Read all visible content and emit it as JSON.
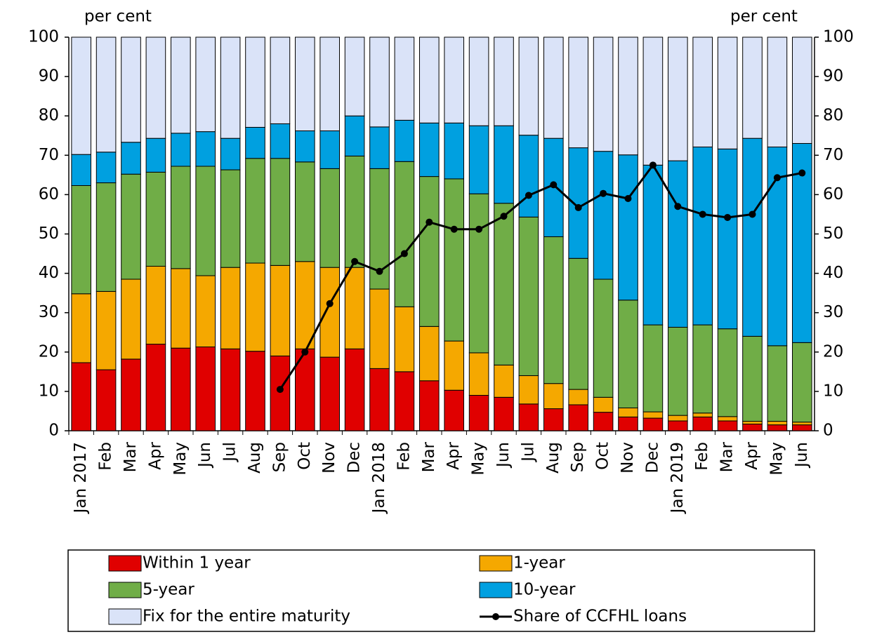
{
  "chart_data": {
    "type": "bar",
    "stacked": true,
    "y_label": "per cent",
    "y2_label": "per cent",
    "categories": [
      "Jan 2017",
      "Feb",
      "Mar",
      "Apr",
      "May",
      "Jun",
      "Jul",
      "Aug",
      "Sep",
      "Oct",
      "Nov",
      "Dec",
      "Jan 2018",
      "Feb",
      "Mar",
      "Apr",
      "May",
      "Jun",
      "Jul",
      "Aug",
      "Sep",
      "Oct",
      "Nov",
      "Dec",
      "Jan 2019",
      "Feb",
      "Mar",
      "Apr",
      "May",
      "Jun"
    ],
    "series": [
      {
        "name": "Within 1 year",
        "color": "#e00000",
        "values": [
          17.3,
          15.5,
          18.2,
          22,
          21,
          21.3,
          20.8,
          20.2,
          19,
          20.8,
          18.7,
          20.8,
          15.8,
          15,
          12.7,
          10.3,
          9,
          8.5,
          6.8,
          5.6,
          6.6,
          4.7,
          3.5,
          3.2,
          2.5,
          3.5,
          2.5,
          1.7,
          1.5,
          1.5
        ]
      },
      {
        "name": "1-year",
        "color": "#f5a800",
        "values": [
          17.5,
          19.9,
          20.3,
          19.8,
          20.2,
          18.1,
          20.7,
          22.4,
          23,
          22.2,
          22.8,
          20.7,
          20.2,
          16.5,
          13.8,
          12.5,
          10.8,
          8.2,
          7.2,
          6.4,
          3.9,
          3.8,
          2.3,
          1.6,
          1.4,
          1.0,
          1.1,
          0.7,
          0.9,
          0.7
        ]
      },
      {
        "name": "5-year",
        "color": "#70ad47",
        "values": [
          27.5,
          27.6,
          26.7,
          23.9,
          26,
          27.8,
          24.8,
          26.6,
          27.2,
          25.3,
          25.1,
          28.3,
          30.6,
          36.9,
          38.1,
          41.2,
          40.4,
          41.1,
          40.3,
          37.3,
          33.3,
          30,
          27.4,
          22.1,
          22.4,
          22.4,
          22.3,
          21.6,
          19.2,
          20.2
        ]
      },
      {
        "name": "10-year",
        "color": "#00a0e0",
        "values": [
          7.9,
          7.8,
          8.1,
          8.6,
          8.4,
          8.8,
          8,
          7.9,
          8.8,
          7.9,
          9.6,
          10.2,
          10.6,
          10.5,
          13.6,
          14.2,
          17.3,
          19.7,
          20.8,
          25,
          28.1,
          32.5,
          36.9,
          40.6,
          42.3,
          45.2,
          45.7,
          50.3,
          50.5,
          50.6
        ]
      },
      {
        "name": "Fix for the entire maturity",
        "color": "#dae3f8",
        "values": [
          29.8,
          29.2,
          26.7,
          25.7,
          24.4,
          24,
          25.7,
          22.9,
          22,
          23.8,
          23.8,
          20,
          22.8,
          21.1,
          21.8,
          21.8,
          22.5,
          22.5,
          24.9,
          25.7,
          28.1,
          29,
          29.9,
          32.5,
          31.4,
          27.9,
          28.4,
          25.7,
          27.9,
          27
        ]
      },
      {
        "name": "Share of CCFHL loans",
        "color": "#000000",
        "type": "line",
        "axis": "y2",
        "values": [
          null,
          null,
          null,
          null,
          null,
          null,
          null,
          null,
          10.5,
          20,
          32.3,
          43,
          40.5,
          45,
          53,
          51.2,
          51.2,
          54.5,
          59.8,
          62.5,
          56.7,
          60.3,
          59,
          67.5,
          57,
          55,
          54.2,
          55,
          64.3,
          65.5
        ]
      }
    ],
    "ylim": [
      0,
      100
    ],
    "yticks": [
      0,
      10,
      20,
      30,
      40,
      50,
      60,
      70,
      80,
      90,
      100
    ],
    "y2lim": [
      0,
      100
    ],
    "y2ticks": [
      0,
      10,
      20,
      30,
      40,
      50,
      60,
      70,
      80,
      90,
      100
    ]
  }
}
